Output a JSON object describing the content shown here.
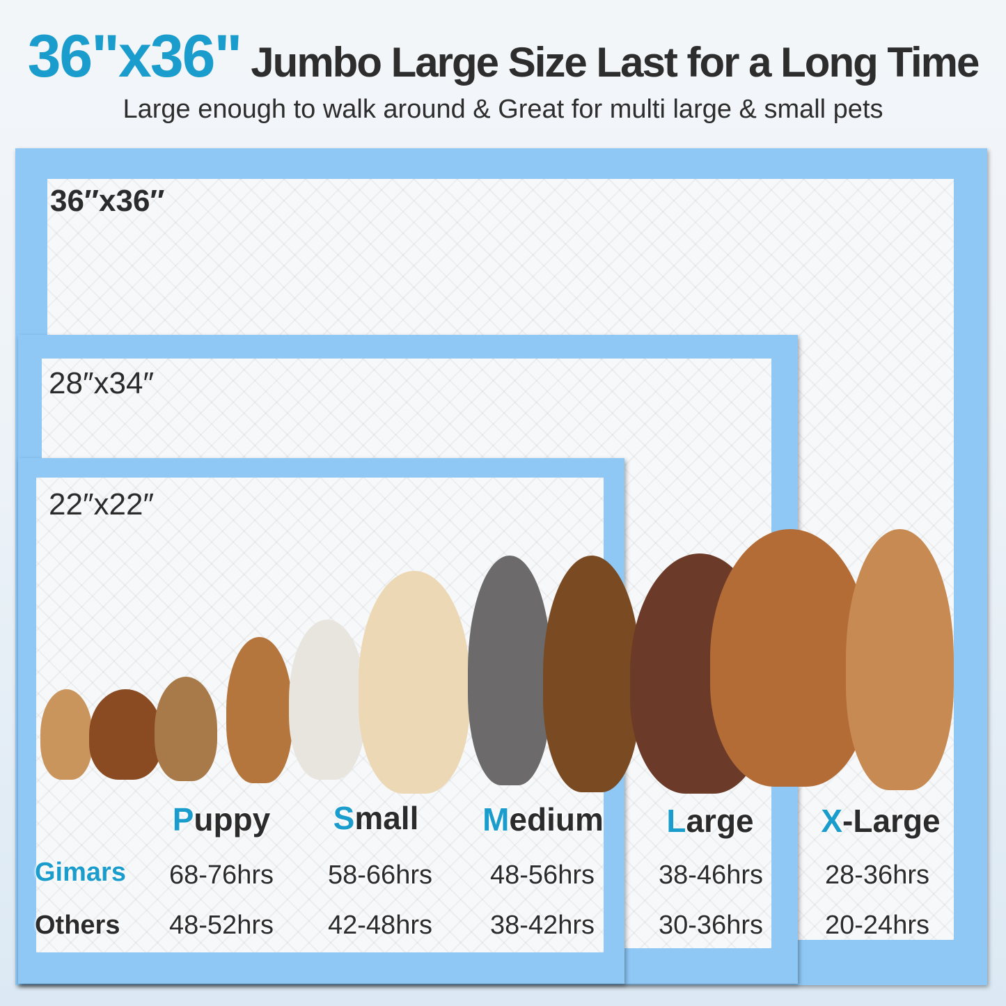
{
  "header": {
    "size": "36\"x36\"",
    "headline": "Jumbo Large Size Last for a Long Time",
    "subtitle": "Large enough to walk around & Great for multi large & small pets"
  },
  "pads": [
    {
      "label": "36″x36″"
    },
    {
      "label": "28″x34″"
    },
    {
      "label": "22″x22″"
    }
  ],
  "table": {
    "columns": [
      {
        "first": "P",
        "rest": "uppy"
      },
      {
        "first": "S",
        "rest": "mall"
      },
      {
        "first": "M",
        "rest": "edium"
      },
      {
        "first": "L",
        "rest": "arge"
      },
      {
        "first": "X",
        "rest": "-Large"
      }
    ],
    "rows": [
      {
        "label": "Gimars",
        "values": [
          "68-76hrs",
          "58-66hrs",
          "48-56hrs",
          "38-46hrs",
          "28-36hrs"
        ]
      },
      {
        "label": "Others",
        "values": [
          "48-52hrs",
          "42-48hrs",
          "38-42hrs",
          "30-36hrs",
          "20-24hrs"
        ]
      }
    ]
  },
  "colors": {
    "accent": "#1a9ccc",
    "pad_border": "#8fc8f5",
    "text": "#2b2b2b"
  },
  "image": {
    "content": "row of eleven dogs from smallest to largest"
  }
}
